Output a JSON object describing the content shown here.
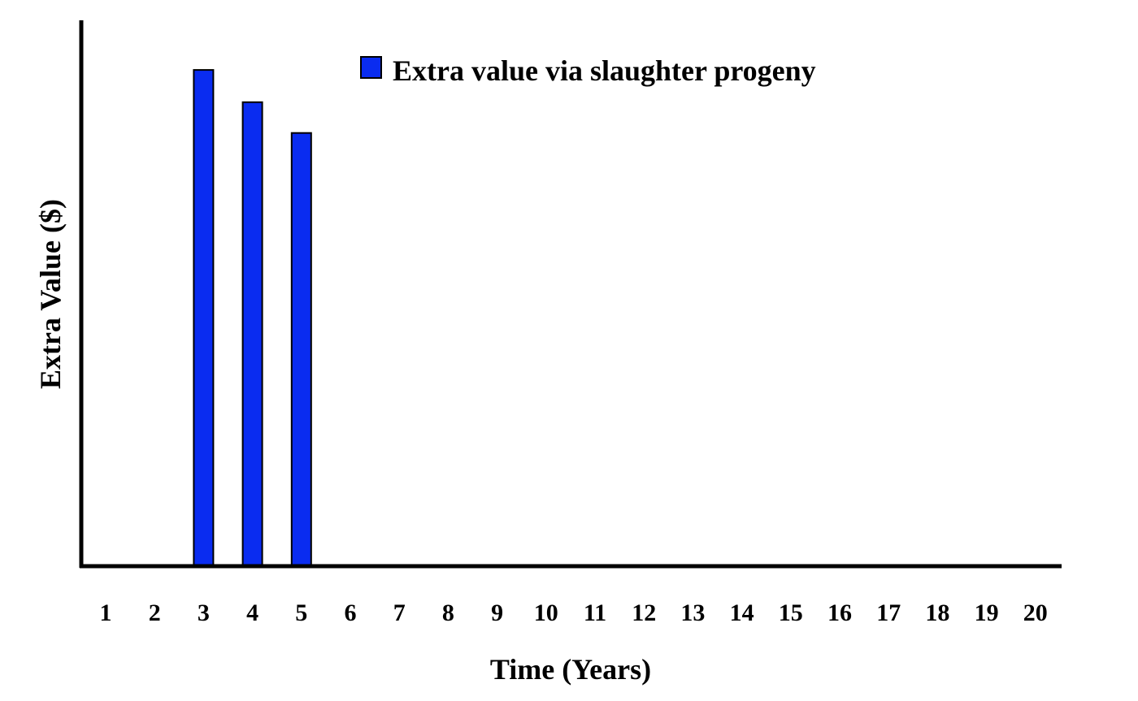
{
  "chart_data": {
    "type": "bar",
    "title": "",
    "xlabel": "Time (Years)",
    "ylabel": "Extra Value ($)",
    "categories": [
      "1",
      "2",
      "3",
      "4",
      "5",
      "6",
      "7",
      "8",
      "9",
      "10",
      "11",
      "12",
      "13",
      "14",
      "15",
      "16",
      "17",
      "18",
      "19",
      "20"
    ],
    "series": [
      {
        "name": "Extra value via slaughter progeny",
        "color": "#0a2cf0",
        "values": [
          0,
          0,
          100,
          93.5,
          87.3,
          0,
          0,
          0,
          0,
          0,
          0,
          0,
          0,
          0,
          0,
          0,
          0,
          0,
          0,
          0
        ]
      }
    ],
    "ylim": [
      0,
      110
    ],
    "y_tick_labels_shown": false,
    "grid": false,
    "legend_position": "top"
  }
}
